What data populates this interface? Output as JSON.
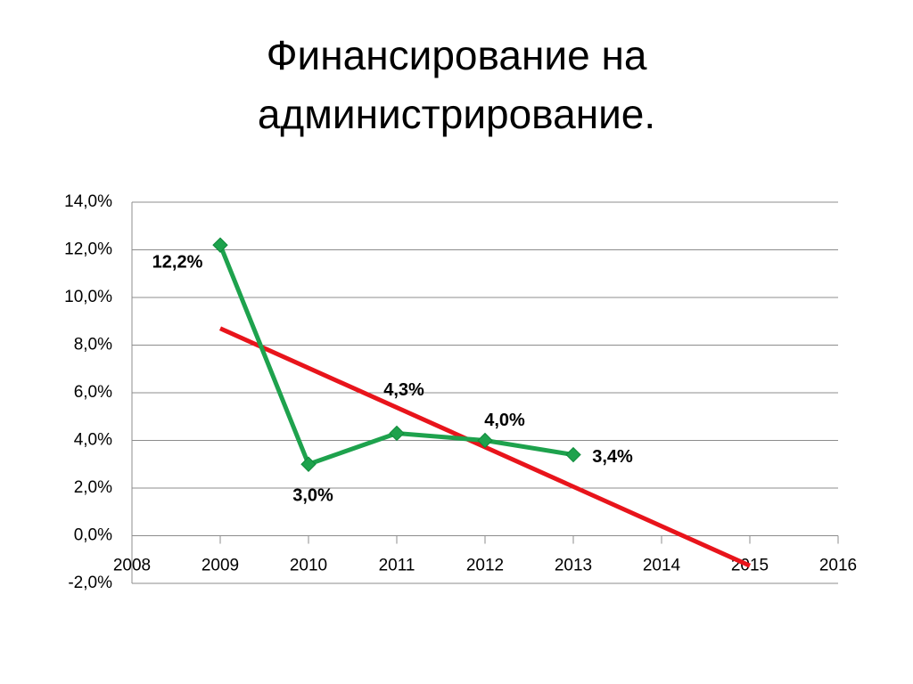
{
  "chart_data": {
    "type": "line",
    "title": [
      "Финансирование на",
      "администрирование."
    ],
    "x": [
      2009,
      2010,
      2011,
      2012,
      2013
    ],
    "series": [
      {
        "color": "#1ea24d",
        "values": [
          12.2,
          3.0,
          4.3,
          4.0,
          3.4
        ],
        "value_labels": [
          "12,2%",
          "3,0%",
          "4,3%",
          "4,0%",
          "3,4%"
        ]
      }
    ],
    "trendline": {
      "color": "#e8141b",
      "x": [
        2009,
        2015
      ],
      "values": [
        8.7,
        -1.26
      ]
    },
    "xlim": [
      2008,
      2016
    ],
    "xticks": [
      2008,
      2009,
      2010,
      2011,
      2012,
      2013,
      2014,
      2015,
      2016
    ],
    "ylim": [
      -2,
      14
    ],
    "yticks": [
      {
        "value": -2,
        "label": "-2,0%"
      },
      {
        "value": 0,
        "label": "0,0%"
      },
      {
        "value": 2,
        "label": "2,0%"
      },
      {
        "value": 4,
        "label": "4,0%"
      },
      {
        "value": 6,
        "label": "6,0%"
      },
      {
        "value": 8,
        "label": "8,0%"
      },
      {
        "value": 10,
        "label": "10,0%"
      },
      {
        "value": 12,
        "label": "12,0%"
      },
      {
        "value": 14,
        "label": "14,0%"
      }
    ],
    "grid": true
  }
}
